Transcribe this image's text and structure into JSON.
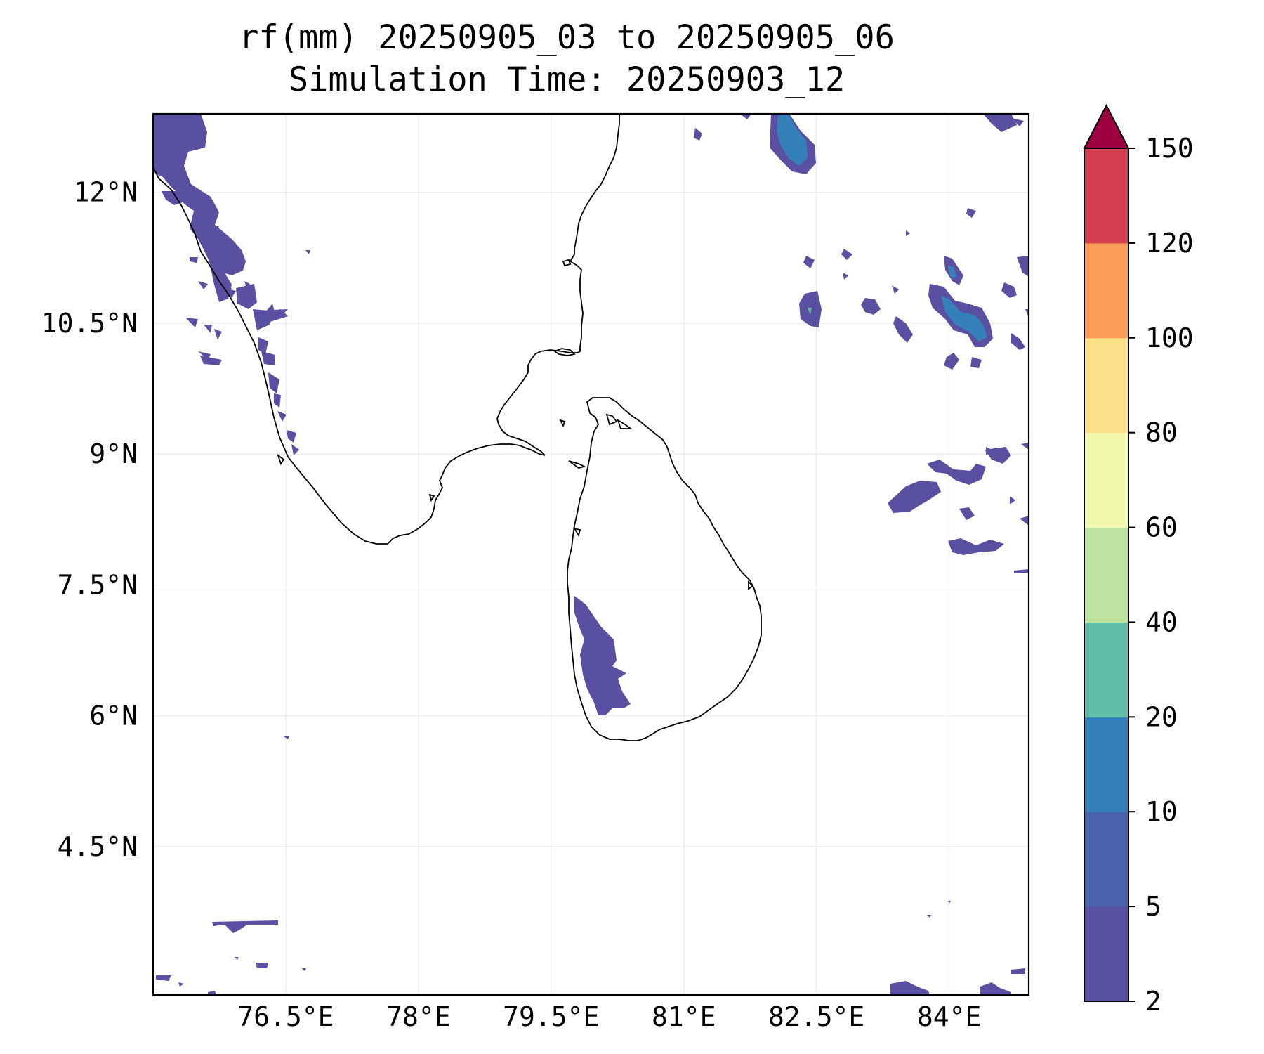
{
  "title": {
    "line1": "rf(mm) 20250905_03 to 20250905_06",
    "line2": "Simulation Time: 20250903_12"
  },
  "map": {
    "lon_range": [
      75.0,
      84.9
    ],
    "lat_range": [
      2.8,
      12.9
    ],
    "lon_ticks": [
      76.5,
      78.0,
      79.5,
      81.0,
      82.5,
      84.0
    ],
    "lon_tick_labels": [
      "76.5°E",
      "78°E",
      "79.5°E",
      "81°E",
      "82.5°E",
      "84°E"
    ],
    "lat_ticks": [
      12.0,
      10.5,
      9.0,
      7.5,
      6.0,
      4.5
    ],
    "lat_tick_labels": [
      "12°N",
      "10.5°N",
      "9°N",
      "7.5°N",
      "6°N",
      "4.5°N"
    ],
    "grid": true,
    "coastline_color": "#000000"
  },
  "colorbar": {
    "boundaries": [
      2,
      5,
      10,
      20,
      40,
      60,
      80,
      100,
      120,
      150
    ],
    "labels": [
      "2",
      "5",
      "10",
      "20",
      "40",
      "60",
      "80",
      "100",
      "120",
      "150"
    ],
    "colors": [
      "#5a50a1",
      "#4a62ab",
      "#3680ba",
      "#62bda8",
      "#bce39f",
      "#f2f9ae",
      "#fce089",
      "#f99d59",
      "#d53e4f"
    ],
    "extend_color": "#9e0142",
    "extend": "max"
  }
}
